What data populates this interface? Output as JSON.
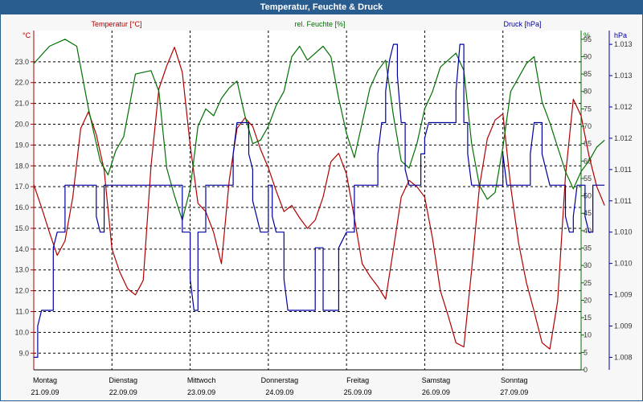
{
  "window": {
    "title": "Temperatur, Feuchte & Druck"
  },
  "legend": {
    "temperature": "Temperatur [°C]",
    "humidity": "rel. Feuchte [%]",
    "pressure": "Druck [hPa]"
  },
  "colors": {
    "temperature": "#b00000",
    "humidity": "#007000",
    "pressure": "#0000a0",
    "grid": "#000000",
    "title_bg": "#2a5d8f"
  },
  "chart_data": {
    "type": "line",
    "title": "Temperatur, Feuchte & Druck",
    "x_labels": [
      {
        "day": "Montag",
        "date": "21.09.09",
        "x": 0
      },
      {
        "day": "Dienstag",
        "date": "22.09.09",
        "x": 1
      },
      {
        "day": "Mittwoch",
        "date": "23.09.09",
        "x": 2
      },
      {
        "day": "Donnerstag",
        "date": "24.09.09",
        "x": 3
      },
      {
        "day": "Freitag",
        "date": "25.09.09",
        "x": 4
      },
      {
        "day": "Samstag",
        "date": "26.09.09",
        "x": 5
      },
      {
        "day": "Sonntag",
        "date": "27.09.09",
        "x": 6
      }
    ],
    "x_range": [
      0,
      7
    ],
    "axes": {
      "temperature": {
        "unit": "°C",
        "range": [
          8.2,
          24.5
        ],
        "ticks": [
          "9.0",
          "10.0",
          "11.0",
          "12.0",
          "13.0",
          "14.0",
          "15.0",
          "16.0",
          "17.0",
          "18.0",
          "19.0",
          "20.0",
          "21.0",
          "22.0",
          "23.0"
        ]
      },
      "humidity": {
        "unit": "%",
        "range": [
          0,
          97.5
        ],
        "ticks": [
          "0",
          "5",
          "10",
          "15",
          "20",
          "25",
          "30",
          "35",
          "40",
          "45",
          "50",
          "55",
          "60",
          "65",
          "70",
          "75",
          "80",
          "85",
          "90",
          "95"
        ]
      },
      "pressure": {
        "unit": "hPa",
        "range": [
          1007.8,
          1013.22
        ],
        "ticks": [
          "1.008",
          "1.009",
          "1.009",
          "1.010",
          "1.010",
          "1.011",
          "1.011",
          "1.012",
          "1.012",
          "1.013",
          "1.013"
        ],
        "tick_values": [
          1008.0,
          1008.5,
          1009.0,
          1009.5,
          1010.0,
          1010.5,
          1011.0,
          1011.5,
          1012.0,
          1012.5,
          1013.0
        ]
      }
    },
    "grid": true,
    "series": [
      {
        "name": "Temperatur [°C]",
        "axis": "temperature",
        "points": [
          [
            0.0,
            17.1
          ],
          [
            0.1,
            16.0
          ],
          [
            0.2,
            14.8
          ],
          [
            0.3,
            13.7
          ],
          [
            0.4,
            14.4
          ],
          [
            0.5,
            16.5
          ],
          [
            0.6,
            19.8
          ],
          [
            0.7,
            20.6
          ],
          [
            0.8,
            19.5
          ],
          [
            0.9,
            17.8
          ],
          [
            1.0,
            14.0
          ],
          [
            1.1,
            12.9
          ],
          [
            1.2,
            12.1
          ],
          [
            1.3,
            11.8
          ],
          [
            1.4,
            12.5
          ],
          [
            1.5,
            18.0
          ],
          [
            1.6,
            21.7
          ],
          [
            1.7,
            22.8
          ],
          [
            1.8,
            23.7
          ],
          [
            1.9,
            22.5
          ],
          [
            2.0,
            19.0
          ],
          [
            2.1,
            16.2
          ],
          [
            2.2,
            15.8
          ],
          [
            2.3,
            14.8
          ],
          [
            2.4,
            13.3
          ],
          [
            2.5,
            17.3
          ],
          [
            2.6,
            19.8
          ],
          [
            2.7,
            20.3
          ],
          [
            2.8,
            19.9
          ],
          [
            2.9,
            18.8
          ],
          [
            3.0,
            17.9
          ],
          [
            3.1,
            16.8
          ],
          [
            3.2,
            15.8
          ],
          [
            3.3,
            16.1
          ],
          [
            3.4,
            15.5
          ],
          [
            3.5,
            15.0
          ],
          [
            3.6,
            15.4
          ],
          [
            3.7,
            16.5
          ],
          [
            3.8,
            18.2
          ],
          [
            3.9,
            18.6
          ],
          [
            4.0,
            17.6
          ],
          [
            4.1,
            15.5
          ],
          [
            4.2,
            13.3
          ],
          [
            4.3,
            12.7
          ],
          [
            4.4,
            12.2
          ],
          [
            4.5,
            11.6
          ],
          [
            4.6,
            14.0
          ],
          [
            4.7,
            16.5
          ],
          [
            4.8,
            17.3
          ],
          [
            4.9,
            17.0
          ],
          [
            5.0,
            16.5
          ],
          [
            5.1,
            14.5
          ],
          [
            5.2,
            12.0
          ],
          [
            5.3,
            10.8
          ],
          [
            5.4,
            9.5
          ],
          [
            5.5,
            9.3
          ],
          [
            5.6,
            13.0
          ],
          [
            5.7,
            17.0
          ],
          [
            5.8,
            19.3
          ],
          [
            5.9,
            20.2
          ],
          [
            6.0,
            20.5
          ],
          [
            6.1,
            17.0
          ],
          [
            6.2,
            14.3
          ],
          [
            6.3,
            12.4
          ],
          [
            6.4,
            11.0
          ],
          [
            6.5,
            9.5
          ],
          [
            6.6,
            9.2
          ],
          [
            6.7,
            11.5
          ],
          [
            6.8,
            17.5
          ],
          [
            6.9,
            21.2
          ],
          [
            7.0,
            20.4
          ],
          [
            7.1,
            18.5
          ],
          [
            7.2,
            17.0
          ],
          [
            7.3,
            16.1
          ]
        ]
      },
      {
        "name": "rel. Feuchte [%]",
        "axis": "humidity",
        "points": [
          [
            0.0,
            88
          ],
          [
            0.2,
            93
          ],
          [
            0.4,
            95
          ],
          [
            0.55,
            93
          ],
          [
            0.7,
            75
          ],
          [
            0.85,
            60
          ],
          [
            0.95,
            56
          ],
          [
            1.05,
            63
          ],
          [
            1.15,
            67
          ],
          [
            1.3,
            85
          ],
          [
            1.5,
            86
          ],
          [
            1.6,
            80
          ],
          [
            1.7,
            58
          ],
          [
            1.8,
            50
          ],
          [
            1.9,
            43
          ],
          [
            2.0,
            52
          ],
          [
            2.1,
            70
          ],
          [
            2.2,
            75
          ],
          [
            2.3,
            73
          ],
          [
            2.4,
            78
          ],
          [
            2.5,
            81
          ],
          [
            2.6,
            83
          ],
          [
            2.7,
            73
          ],
          [
            2.8,
            65
          ],
          [
            2.9,
            66
          ],
          [
            3.0,
            70
          ],
          [
            3.1,
            76
          ],
          [
            3.2,
            80
          ],
          [
            3.3,
            90
          ],
          [
            3.4,
            93
          ],
          [
            3.5,
            89
          ],
          [
            3.7,
            93
          ],
          [
            3.8,
            90
          ],
          [
            3.9,
            78
          ],
          [
            4.0,
            68
          ],
          [
            4.1,
            61
          ],
          [
            4.2,
            71
          ],
          [
            4.3,
            81
          ],
          [
            4.4,
            86
          ],
          [
            4.5,
            89
          ],
          [
            4.6,
            73
          ],
          [
            4.7,
            60
          ],
          [
            4.8,
            58
          ],
          [
            4.9,
            65
          ],
          [
            5.0,
            75
          ],
          [
            5.1,
            80
          ],
          [
            5.2,
            87
          ],
          [
            5.3,
            89
          ],
          [
            5.4,
            91
          ],
          [
            5.5,
            86
          ],
          [
            5.6,
            65
          ],
          [
            5.7,
            53
          ],
          [
            5.8,
            49
          ],
          [
            5.9,
            51
          ],
          [
            6.0,
            64
          ],
          [
            6.1,
            80
          ],
          [
            6.2,
            84
          ],
          [
            6.3,
            88
          ],
          [
            6.4,
            90
          ],
          [
            6.5,
            77
          ],
          [
            6.6,
            71
          ],
          [
            6.7,
            64
          ],
          [
            6.8,
            57
          ],
          [
            6.9,
            52
          ],
          [
            7.0,
            57
          ],
          [
            7.1,
            60
          ],
          [
            7.2,
            64
          ],
          [
            7.3,
            66
          ]
        ]
      },
      {
        "name": "Druck [hPa]",
        "axis": "pressure",
        "points": [
          [
            0.0,
            1008.0
          ],
          [
            0.05,
            1008.0
          ],
          [
            0.05,
            1008.5
          ],
          [
            0.1,
            1008.75
          ],
          [
            0.25,
            1008.75
          ],
          [
            0.25,
            1009.75
          ],
          [
            0.3,
            1010.0
          ],
          [
            0.4,
            1010.0
          ],
          [
            0.4,
            1010.75
          ],
          [
            0.8,
            1010.75
          ],
          [
            0.8,
            1010.25
          ],
          [
            0.85,
            1010.0
          ],
          [
            0.9,
            1010.0
          ],
          [
            0.9,
            1010.75
          ],
          [
            1.9,
            1010.75
          ],
          [
            1.9,
            1010.0
          ],
          [
            1.95,
            1010.0
          ],
          [
            2.0,
            1010.0
          ],
          [
            2.0,
            1009.25
          ],
          [
            2.05,
            1008.75
          ],
          [
            2.1,
            1008.75
          ],
          [
            2.1,
            1010.0
          ],
          [
            2.15,
            1010.0
          ],
          [
            2.2,
            1010.0
          ],
          [
            2.2,
            1010.75
          ],
          [
            2.55,
            1010.75
          ],
          [
            2.55,
            1011.25
          ],
          [
            2.6,
            1011.75
          ],
          [
            2.75,
            1011.75
          ],
          [
            2.75,
            1011.25
          ],
          [
            2.8,
            1011.0
          ],
          [
            2.8,
            1010.5
          ],
          [
            2.85,
            1010.25
          ],
          [
            2.9,
            1010.0
          ],
          [
            3.0,
            1010.0
          ],
          [
            3.0,
            1010.75
          ],
          [
            3.05,
            1010.75
          ],
          [
            3.05,
            1010.25
          ],
          [
            3.1,
            1010.0
          ],
          [
            3.2,
            1010.0
          ],
          [
            3.2,
            1009.25
          ],
          [
            3.25,
            1008.75
          ],
          [
            3.6,
            1008.75
          ],
          [
            3.6,
            1009.75
          ],
          [
            3.7,
            1009.75
          ],
          [
            3.7,
            1008.75
          ],
          [
            3.9,
            1008.75
          ],
          [
            3.9,
            1009.75
          ],
          [
            4.0,
            1010.0
          ],
          [
            4.1,
            1010.0
          ],
          [
            4.1,
            1010.75
          ],
          [
            4.4,
            1010.75
          ],
          [
            4.4,
            1011.25
          ],
          [
            4.45,
            1011.75
          ],
          [
            4.5,
            1011.75
          ],
          [
            4.5,
            1012.25
          ],
          [
            4.55,
            1012.75
          ],
          [
            4.6,
            1013.0
          ],
          [
            4.65,
            1013.0
          ],
          [
            4.65,
            1012.5
          ],
          [
            4.7,
            1011.75
          ],
          [
            4.75,
            1011.75
          ],
          [
            4.75,
            1011.0
          ],
          [
            4.8,
            1010.75
          ],
          [
            4.95,
            1010.75
          ],
          [
            4.95,
            1011.25
          ],
          [
            5.0,
            1011.25
          ],
          [
            5.0,
            1011.5
          ],
          [
            5.05,
            1011.75
          ],
          [
            5.4,
            1011.75
          ],
          [
            5.4,
            1012.25
          ],
          [
            5.45,
            1013.0
          ],
          [
            5.5,
            1013.0
          ],
          [
            5.5,
            1011.75
          ],
          [
            5.55,
            1011.75
          ],
          [
            5.55,
            1011.25
          ],
          [
            5.6,
            1010.75
          ],
          [
            6.0,
            1010.75
          ],
          [
            6.0,
            1011.25
          ],
          [
            6.05,
            1010.75
          ],
          [
            6.35,
            1010.75
          ],
          [
            6.35,
            1011.25
          ],
          [
            6.4,
            1011.75
          ],
          [
            6.5,
            1011.75
          ],
          [
            6.5,
            1011.25
          ],
          [
            6.55,
            1011.0
          ],
          [
            6.6,
            1010.75
          ],
          [
            6.8,
            1010.75
          ],
          [
            6.8,
            1010.25
          ],
          [
            6.85,
            1010.0
          ],
          [
            6.9,
            1010.0
          ],
          [
            6.9,
            1010.25
          ],
          [
            6.95,
            1010.75
          ],
          [
            7.05,
            1010.75
          ],
          [
            7.05,
            1010.25
          ],
          [
            7.1,
            1010.0
          ],
          [
            7.15,
            1010.0
          ],
          [
            7.15,
            1010.75
          ],
          [
            7.3,
            1010.75
          ]
        ]
      }
    ]
  }
}
